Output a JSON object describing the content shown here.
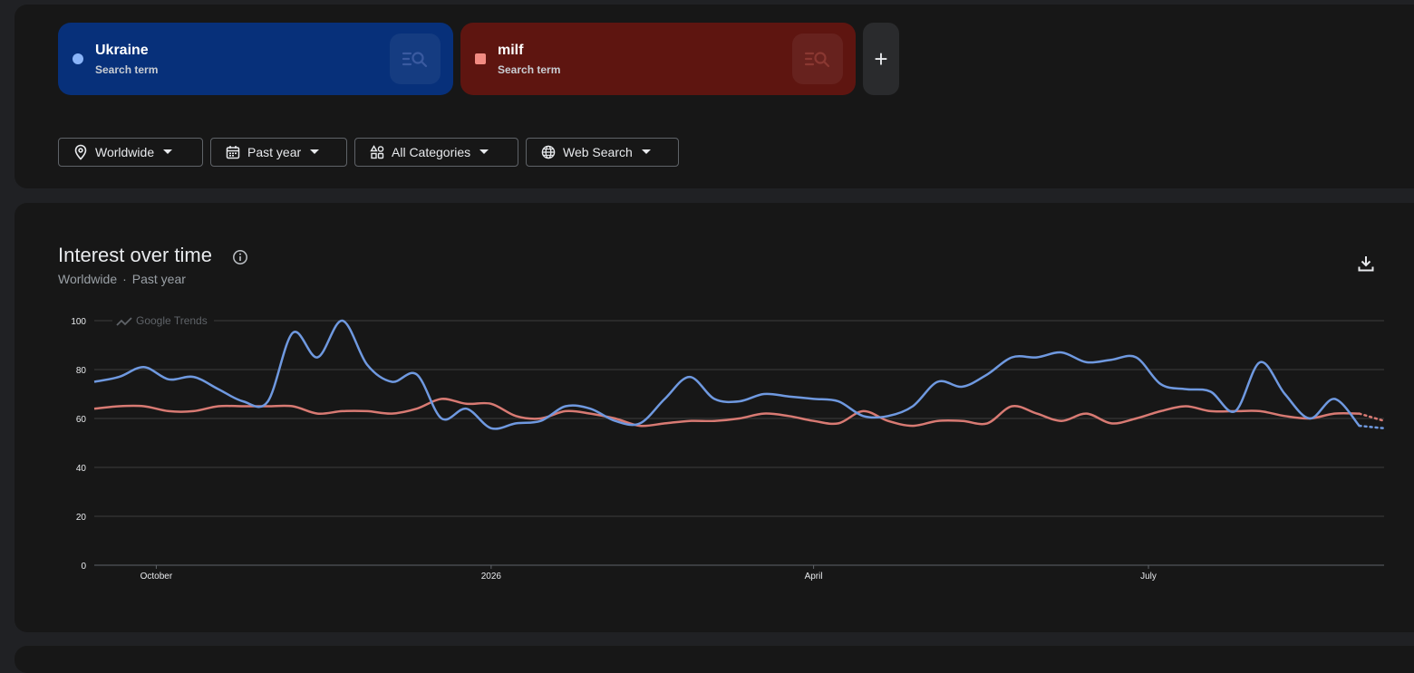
{
  "terms": [
    {
      "name": "Ukraine",
      "subtitle": "Search term",
      "color": "#8ab4f8"
    },
    {
      "name": "milf",
      "subtitle": "Search term",
      "color": "#f28b82"
    }
  ],
  "add_term_label": "+",
  "filters": {
    "location": "Worldwide",
    "time": "Past year",
    "category": "All Categories",
    "search_type": "Web Search"
  },
  "chart_panel": {
    "title": "Interest over time",
    "subtitle_location": "Worldwide",
    "subtitle_separator": "·",
    "subtitle_time": "Past year",
    "watermark": "Google Trends"
  },
  "chart_data": {
    "type": "line",
    "ylim": [
      0,
      100
    ],
    "yticks": [
      0,
      20,
      40,
      60,
      80,
      100
    ],
    "x_tick_labels": [
      "October",
      "2026",
      "April",
      "July"
    ],
    "x_tick_index": [
      2.5,
      16,
      29,
      42.5
    ],
    "grid": true,
    "legend": "none",
    "series": [
      {
        "name": "Ukraine",
        "color": "#6f99e0",
        "values": [
          75,
          77,
          81,
          76,
          77,
          72,
          67,
          67,
          95,
          85,
          100,
          82,
          75,
          78,
          60,
          64,
          56,
          58,
          59,
          65,
          64,
          59,
          58,
          68,
          77,
          68,
          67,
          70,
          69,
          68,
          67,
          61,
          61,
          65,
          75,
          73,
          78,
          85,
          85,
          87,
          83,
          84,
          85,
          74,
          72,
          71,
          63,
          83,
          70,
          60,
          68,
          57,
          56
        ],
        "partial_from_index": 51
      },
      {
        "name": "milf",
        "color": "#d87a73",
        "values": [
          64,
          65,
          65,
          63,
          63,
          65,
          65,
          65,
          65,
          62,
          63,
          63,
          62,
          64,
          68,
          66,
          66,
          61,
          60,
          63,
          62,
          60,
          57,
          58,
          59,
          59,
          60,
          62,
          61,
          59,
          58,
          63,
          59,
          57,
          59,
          59,
          58,
          65,
          62,
          59,
          62,
          58,
          60,
          63,
          65,
          63,
          63,
          63,
          61,
          60,
          62,
          62,
          59
        ],
        "partial_from_index": 51
      }
    ]
  }
}
